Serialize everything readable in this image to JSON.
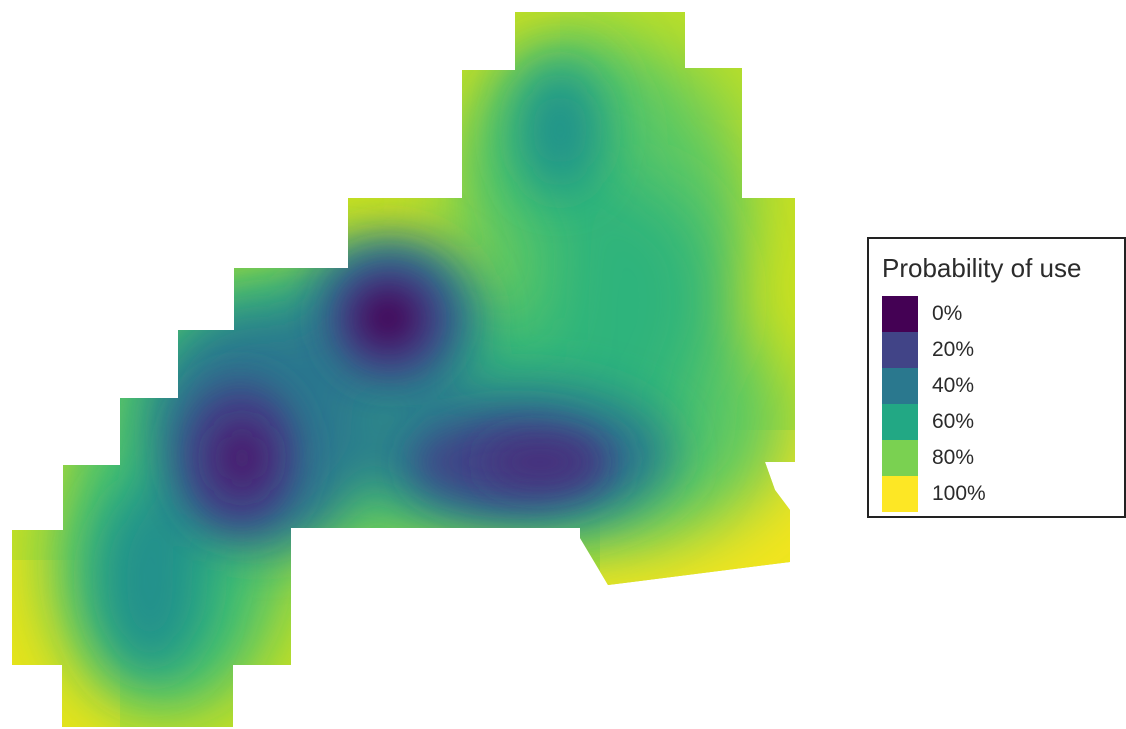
{
  "legend": {
    "title": "Probability of use",
    "items": [
      {
        "label": "0%",
        "color": "#440154"
      },
      {
        "label": "20%",
        "color": "#414487"
      },
      {
        "label": "40%",
        "color": "#2a788e"
      },
      {
        "label": "60%",
        "color": "#22a884"
      },
      {
        "label": "80%",
        "color": "#7ad151"
      },
      {
        "label": "100%",
        "color": "#fde725"
      }
    ]
  },
  "palette": {
    "scheme": "viridis",
    "low": "#440154",
    "high": "#fde725"
  }
}
